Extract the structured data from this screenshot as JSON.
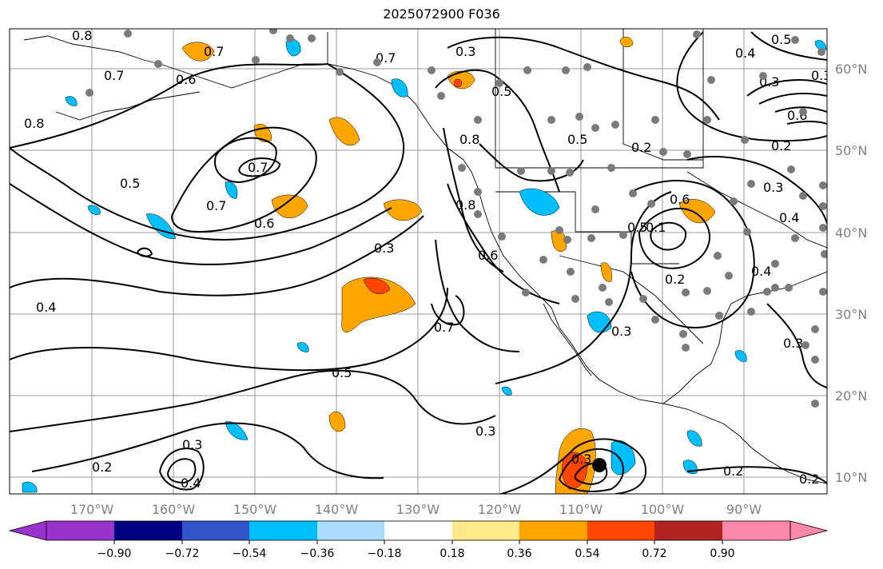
{
  "title": "2025072900 F036",
  "lat_labels": [
    "60°N",
    "50°N",
    "40°N",
    "30°N",
    "20°N",
    "10°N"
  ],
  "lon_labels": [
    "170°W",
    "160°W",
    "150°W",
    "140°W",
    "130°W",
    "120°W",
    "110°W",
    "100°W",
    "90°W"
  ],
  "colorbar": {
    "colors": [
      "#9933cc",
      "#000080",
      "#3355cc",
      "#00bfff",
      "#aadcff",
      "#ffffff",
      "#ffe98a",
      "#ffa500",
      "#ff4500",
      "#b22222",
      "#ff88aa"
    ],
    "tick_labels": [
      "−0.90",
      "−0.72",
      "−0.54",
      "−0.36",
      "−0.18",
      "0.18",
      "0.36",
      "0.54",
      "0.72",
      "0.90"
    ]
  },
  "contour_labels": [
    "0.8",
    "0.7",
    "0.7",
    "0.6",
    "0.8",
    "0.7",
    "0.5",
    "0.5",
    "0.7",
    "0.6",
    "0.3",
    "0.4",
    "0.8",
    "0.8",
    "0.6",
    "0.7",
    "0.7",
    "0.5",
    "0.2",
    "0.4",
    "0.5",
    "0.3",
    "0.6",
    "0.2",
    "0.2",
    "0.3",
    "0.4",
    "0.6",
    "0.5",
    "0.1",
    "0.2",
    "0.4",
    "0.3",
    "0.3",
    "0.5",
    "0.3",
    "0.2",
    "0.3",
    "0.4",
    "0.3",
    "0.2",
    "0.3",
    "0.3"
  ]
}
